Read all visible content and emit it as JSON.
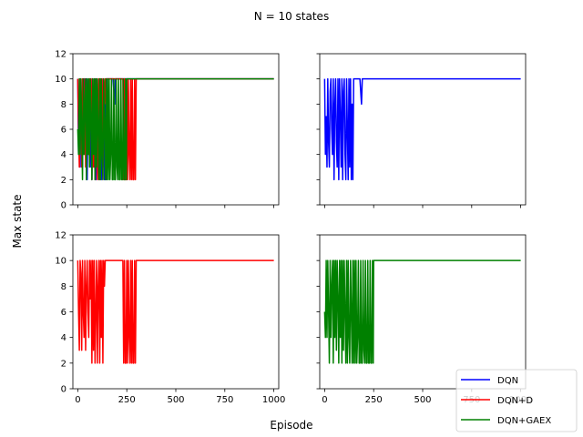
{
  "chart_data": {
    "type": "line",
    "title": "N = 10 states",
    "xlabel": "Episode",
    "ylabel": "Max state",
    "xlim": [
      -25,
      1025
    ],
    "ylim": [
      0,
      12
    ],
    "xticks": [
      0,
      250,
      500,
      750,
      1000
    ],
    "yticks": [
      0,
      2,
      4,
      6,
      8,
      10,
      12
    ],
    "grid": false,
    "legend_position": "bottom-right",
    "series": [
      {
        "name": "DQN",
        "color": "#0000ff",
        "x": [
          0,
          4,
          8,
          12,
          16,
          20,
          24,
          28,
          32,
          36,
          40,
          44,
          48,
          52,
          56,
          60,
          64,
          68,
          72,
          76,
          80,
          84,
          88,
          92,
          96,
          100,
          104,
          108,
          112,
          116,
          120,
          124,
          128,
          132,
          136,
          140,
          144,
          148,
          150,
          155,
          160,
          170,
          180,
          188,
          192,
          200,
          300,
          400,
          500,
          600,
          700,
          800,
          900,
          1000
        ],
        "y": [
          10,
          4,
          7,
          3,
          10,
          5,
          3,
          9,
          10,
          6,
          4,
          10,
          2,
          8,
          10,
          5,
          3,
          10,
          2,
          10,
          7,
          3,
          10,
          2,
          9,
          10,
          4,
          2,
          10,
          6,
          2,
          10,
          3,
          10,
          2,
          8,
          2,
          10,
          10,
          10,
          10,
          10,
          10,
          8,
          10,
          10,
          10,
          10,
          10,
          10,
          10,
          10,
          10,
          10
        ]
      },
      {
        "name": "DQN+D",
        "color": "#ff0000",
        "x": [
          0,
          4,
          8,
          12,
          16,
          20,
          24,
          28,
          32,
          36,
          40,
          44,
          48,
          52,
          56,
          60,
          64,
          68,
          72,
          76,
          80,
          84,
          88,
          92,
          96,
          100,
          104,
          108,
          112,
          116,
          120,
          124,
          128,
          132,
          136,
          140,
          144,
          148,
          152,
          156,
          160,
          200,
          230,
          234,
          238,
          242,
          246,
          250,
          254,
          258,
          262,
          266,
          270,
          274,
          278,
          282,
          286,
          290,
          294,
          298,
          300,
          350,
          400,
          500,
          600,
          700,
          800,
          900,
          1000
        ],
        "y": [
          10,
          6,
          3,
          10,
          9,
          3,
          10,
          6,
          4,
          10,
          3,
          8,
          10,
          6,
          4,
          10,
          7,
          10,
          2,
          10,
          3,
          10,
          2,
          6,
          10,
          2,
          8,
          10,
          2,
          10,
          4,
          10,
          2,
          10,
          8,
          10,
          10,
          10,
          10,
          10,
          10,
          10,
          10,
          2,
          10,
          2,
          2,
          10,
          2,
          10,
          4,
          2,
          10,
          2,
          10,
          2,
          2,
          10,
          2,
          10,
          10,
          10,
          10,
          10,
          10,
          10,
          10,
          10,
          10
        ]
      },
      {
        "name": "DQN+GAEX",
        "color": "#008000",
        "x": [
          0,
          4,
          8,
          12,
          16,
          20,
          24,
          28,
          32,
          36,
          40,
          44,
          48,
          52,
          56,
          60,
          64,
          68,
          72,
          76,
          80,
          84,
          88,
          92,
          96,
          100,
          104,
          108,
          112,
          116,
          120,
          124,
          128,
          132,
          136,
          140,
          144,
          148,
          152,
          156,
          160,
          164,
          168,
          172,
          176,
          180,
          184,
          188,
          192,
          196,
          200,
          204,
          208,
          212,
          216,
          220,
          224,
          228,
          232,
          236,
          240,
          244,
          248,
          250,
          300,
          400,
          500,
          600,
          700,
          800,
          900,
          1000
        ],
        "y": [
          6,
          4,
          10,
          4,
          10,
          6,
          2,
          10,
          4,
          8,
          10,
          2,
          10,
          4,
          10,
          3,
          10,
          7,
          2,
          10,
          4,
          10,
          2,
          10,
          3,
          10,
          6,
          2,
          10,
          2,
          10,
          4,
          2,
          10,
          6,
          2,
          10,
          2,
          10,
          2,
          10,
          2,
          4,
          10,
          2,
          2,
          10,
          2,
          2,
          10,
          3,
          2,
          10,
          2,
          2,
          10,
          2,
          2,
          10,
          2,
          2,
          10,
          2,
          10,
          10,
          10,
          10,
          10,
          10,
          10,
          10,
          10
        ]
      }
    ],
    "subplots": [
      {
        "series": [
          "DQN",
          "DQN+D",
          "DQN+GAEX"
        ],
        "show_xticklabels": false,
        "show_yticklabels": true
      },
      {
        "series": [
          "DQN"
        ],
        "show_xticklabels": false,
        "show_yticklabels": false
      },
      {
        "series": [
          "DQN+D"
        ],
        "show_xticklabels": true,
        "show_yticklabels": true
      },
      {
        "series": [
          "DQN+GAEX"
        ],
        "show_xticklabels": true,
        "show_yticklabels": false
      }
    ]
  }
}
